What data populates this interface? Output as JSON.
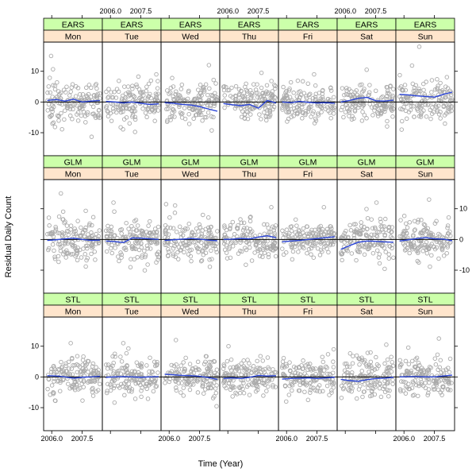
{
  "chart_data": {
    "type": "scatter",
    "title": "",
    "xlabel": "Time (Year)",
    "ylabel": "Residual Daily Count",
    "methods": [
      "EARS",
      "GLM",
      "STL"
    ],
    "days": [
      "Mon",
      "Tue",
      "Wed",
      "Thu",
      "Fri",
      "Sat",
      "Sun"
    ],
    "xlim": [
      2005.6,
      2008.5
    ],
    "ylim": [
      -17.5,
      19.5
    ],
    "x_ticks": [
      2006.0,
      2007.5
    ],
    "x_tick_labels": [
      "2006.0",
      "2007.5"
    ],
    "y_ticks": [
      -10,
      0,
      10
    ],
    "y_tick_labels": [
      "-10",
      "0",
      "10"
    ],
    "reference_line": 0,
    "grid": false,
    "colors": {
      "points": "#aaaaaa",
      "smooth": "#2a44d8",
      "method_strip": "#ccffaa",
      "day_strip": "#ffe5cc",
      "reference": "#000000"
    },
    "panels": [
      {
        "method": "EARS",
        "day": "Mon",
        "spread": 4.5,
        "extra": 15.0,
        "smooth": [
          0.5,
          0.8,
          0.3,
          0.9,
          0.0,
          0.3,
          0.5
        ]
      },
      {
        "method": "EARS",
        "day": "Tue",
        "spread": 4.5,
        "extra": 9.0,
        "smooth": [
          0.2,
          0.0,
          -0.3,
          0.0,
          -0.4,
          -0.8,
          -0.6
        ]
      },
      {
        "method": "EARS",
        "day": "Wed",
        "spread": 4.5,
        "extra": 12.0,
        "smooth": [
          -0.2,
          -0.4,
          -0.8,
          -1.0,
          -1.5,
          -2.3,
          -3.0
        ]
      },
      {
        "method": "EARS",
        "day": "Thu",
        "spread": 4.0,
        "extra": 9.5,
        "smooth": [
          -0.5,
          -0.9,
          -1.2,
          -0.8,
          -2.0,
          0.5,
          -0.3
        ]
      },
      {
        "method": "EARS",
        "day": "Fri",
        "spread": 4.0,
        "extra": 9.0,
        "smooth": [
          0.0,
          -0.2,
          0.2,
          -0.1,
          -0.3,
          -0.2,
          -0.4
        ]
      },
      {
        "method": "EARS",
        "day": "Sat",
        "spread": 4.0,
        "extra": 10.5,
        "smooth": [
          0.0,
          0.5,
          1.2,
          1.5,
          0.4,
          0.3,
          0.6
        ]
      },
      {
        "method": "EARS",
        "day": "Sun",
        "spread": 4.5,
        "extra": 18.0,
        "smooth": [
          2.5,
          2.3,
          2.0,
          1.8,
          1.6,
          2.5,
          3.2
        ]
      },
      {
        "method": "GLM",
        "day": "Mon",
        "spread": 4.5,
        "extra": 15.0,
        "smooth": [
          -0.3,
          -0.1,
          0.2,
          0.4,
          0.0,
          -0.3,
          -0.2
        ]
      },
      {
        "method": "GLM",
        "day": "Tue",
        "spread": 4.5,
        "extra": 12.0,
        "smooth": [
          -0.5,
          -0.7,
          -1.0,
          0.5,
          0.4,
          0.2,
          0.0
        ]
      },
      {
        "method": "GLM",
        "day": "Wed",
        "spread": 4.5,
        "extra": 11.5,
        "smooth": [
          -0.3,
          -0.1,
          0.1,
          0.3,
          0.1,
          -0.2,
          -0.4
        ]
      },
      {
        "method": "GLM",
        "day": "Thu",
        "spread": 4.5,
        "extra": 10.5,
        "smooth": [
          0.0,
          0.1,
          0.3,
          0.2,
          0.8,
          1.2,
          0.6
        ]
      },
      {
        "method": "GLM",
        "day": "Fri",
        "spread": 4.0,
        "extra": 10.5,
        "smooth": [
          -0.8,
          -0.5,
          -0.3,
          0.0,
          0.3,
          0.6,
          0.9
        ]
      },
      {
        "method": "GLM",
        "day": "Sat",
        "spread": 4.5,
        "extra": 12.0,
        "smooth": [
          -3.2,
          -2.0,
          -0.9,
          -0.5,
          -0.6,
          -0.8,
          -0.9
        ]
      },
      {
        "method": "GLM",
        "day": "Sun",
        "spread": 4.5,
        "extra": 13.0,
        "smooth": [
          -0.5,
          -0.1,
          0.3,
          0.6,
          0.2,
          0.1,
          -0.4
        ]
      },
      {
        "method": "STL",
        "day": "Mon",
        "spread": 4.0,
        "extra": 11.0,
        "smooth": [
          0.4,
          0.3,
          0.0,
          -0.4,
          -0.1,
          0.0,
          0.2
        ]
      },
      {
        "method": "STL",
        "day": "Tue",
        "spread": 4.5,
        "extra": 11.0,
        "smooth": [
          -0.1,
          0.0,
          0.1,
          0.0,
          -0.1,
          0.0,
          0.1
        ]
      },
      {
        "method": "STL",
        "day": "Wed",
        "spread": 4.0,
        "extra": 12.0,
        "smooth": [
          0.9,
          0.7,
          0.5,
          0.4,
          0.2,
          -0.2,
          -0.8
        ]
      },
      {
        "method": "STL",
        "day": "Thu",
        "spread": 4.0,
        "extra": 10.0,
        "smooth": [
          -0.5,
          -0.3,
          -0.5,
          -0.1,
          0.5,
          0.3,
          0.4
        ]
      },
      {
        "method": "STL",
        "day": "Fri",
        "spread": 4.0,
        "extra": 9.0,
        "smooth": [
          -0.7,
          -0.5,
          -0.4,
          -0.3,
          -0.5,
          -0.3,
          -0.1
        ]
      },
      {
        "method": "STL",
        "day": "Sat",
        "spread": 4.5,
        "extra": 10.5,
        "smooth": [
          -0.8,
          -1.2,
          -1.4,
          -0.9,
          -0.5,
          -0.4,
          -0.1
        ]
      },
      {
        "method": "STL",
        "day": "Sun",
        "spread": 4.5,
        "extra": 12.5,
        "smooth": [
          0.0,
          0.1,
          0.1,
          0.0,
          0.0,
          0.3,
          0.6
        ]
      }
    ]
  }
}
